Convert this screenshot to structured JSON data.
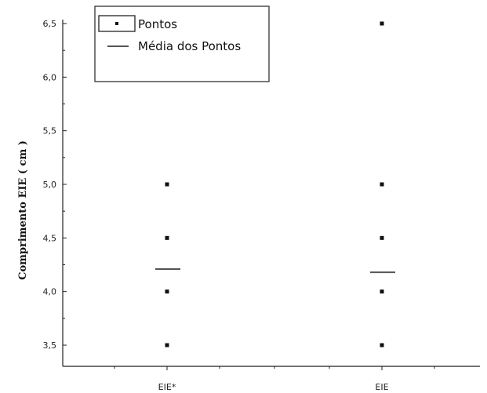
{
  "chart_data": {
    "type": "scatter",
    "categories": [
      "EIE*",
      "EIE"
    ],
    "ylabel": "Comprimento EIE ( cm )",
    "xlabel": "",
    "ylim": [
      3.35,
      6.55
    ],
    "yticks": [
      "3,5",
      "4,0",
      "4,5",
      "5,0",
      "5,5",
      "6,0",
      "6,5"
    ],
    "ytick_values": [
      3.5,
      4.0,
      4.5,
      5.0,
      5.5,
      6.0,
      6.5
    ],
    "series": [
      {
        "name": "Pontos",
        "marker": "square",
        "points": [
          {
            "category": "EIE*",
            "values": [
              5.0,
              4.5,
              4.0,
              3.5
            ]
          },
          {
            "category": "EIE",
            "values": [
              6.5,
              5.0,
              4.5,
              4.0,
              3.5
            ]
          }
        ]
      },
      {
        "name": "Média dos Pontos",
        "marker": "hline",
        "values": [
          4.21,
          4.18
        ]
      }
    ],
    "legend": {
      "position": "top-left",
      "items": [
        "Pontos",
        "Média dos Pontos"
      ]
    },
    "grid": false,
    "colors": {
      "points": "#111111",
      "mean": "#555555",
      "axis": "#222222"
    }
  }
}
